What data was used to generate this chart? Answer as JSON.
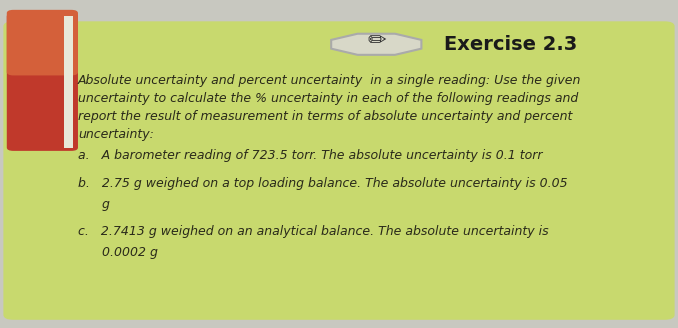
{
  "title": "Exercise 2.3",
  "outer_bg": "#c8c8c0",
  "card_bg": "#c8d96e",
  "title_color": "#1a1a1a",
  "text_color": "#2a2a1a",
  "header_line1": "Absolute uncertainty and percent uncertainty  in a single reading: Use the given",
  "header_line2": "uncertainty to calculate the % uncertainty in each of the following readings and",
  "header_line3": "report the result of measurement in terms of absolute uncertainty and percent",
  "header_line4": "uncertainty:",
  "item_a": "a.   A barometer reading of 723.5 torr. The absolute uncertainty is 0.1 torr",
  "item_b1": "b.   2.75 g weighed on a top loading balance. The absolute uncertainty is 0.05",
  "item_b2": "       g",
  "item_c1": "c.   2.7413 g weighed on an analytical balance. The absolute uncertainty is",
  "item_c2": "       0.0002 g",
  "red_color": "#c0392b",
  "orange_color": "#d4603a",
  "pencil_bg": "#d8d8c8",
  "pencil_edge": "#aaaaaa",
  "figsize": [
    6.78,
    3.28
  ],
  "dpi": 100
}
